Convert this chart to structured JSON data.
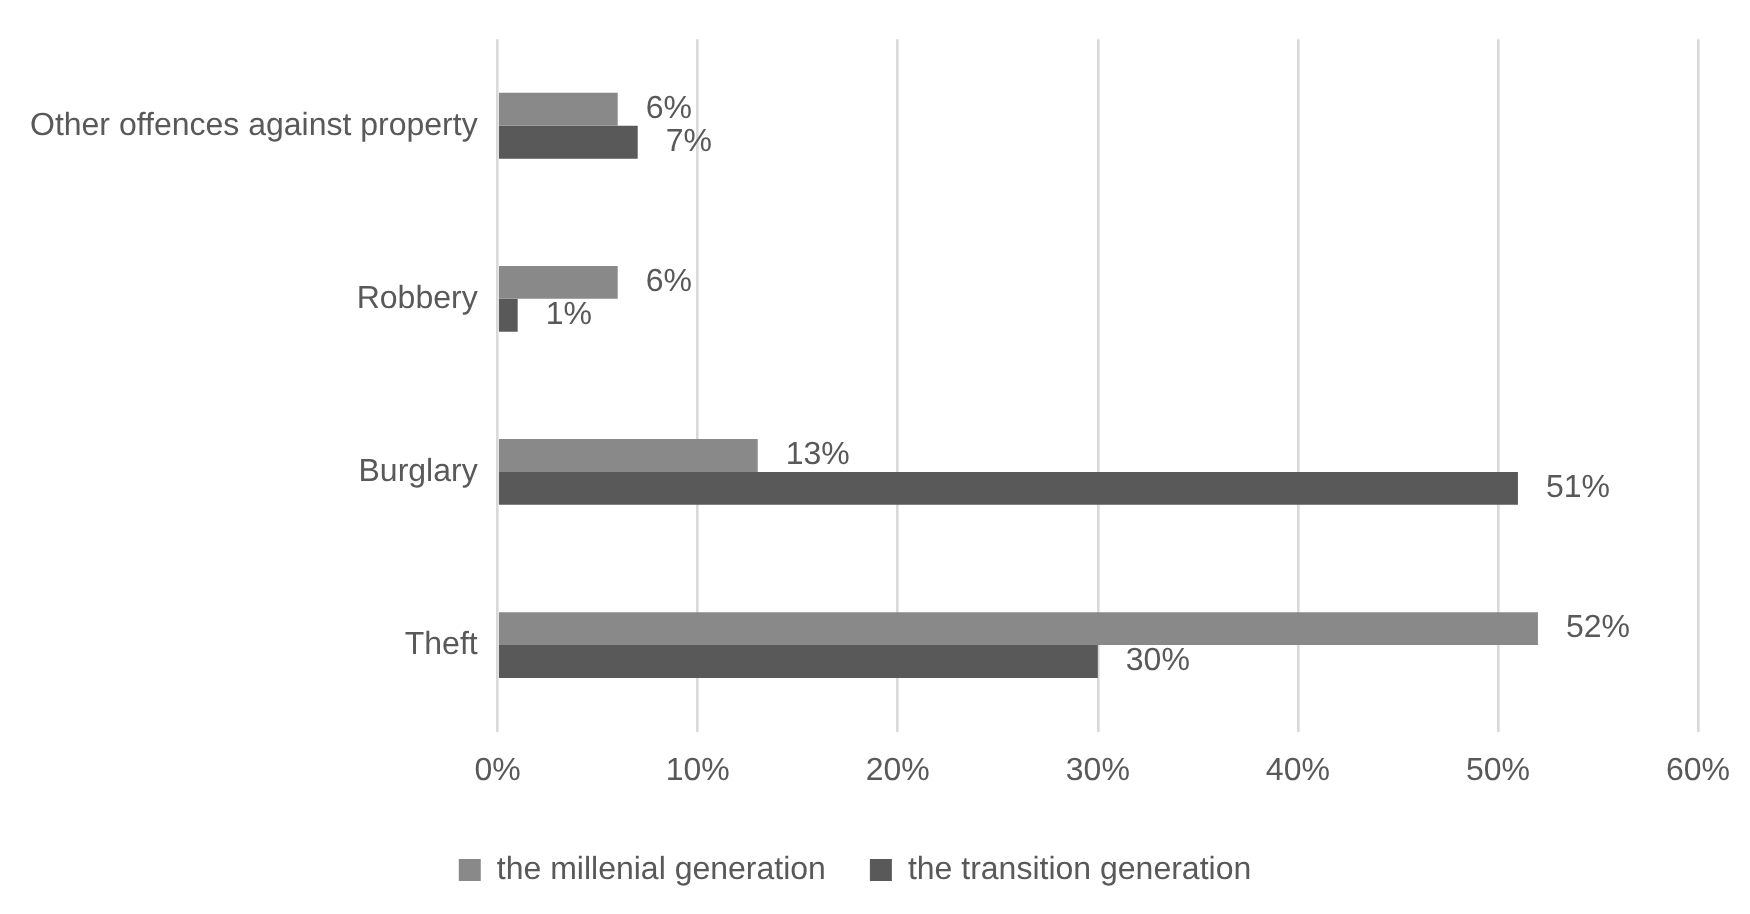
{
  "chart_data": {
    "type": "bar",
    "orientation": "horizontal",
    "categories": [
      "Other offences against property",
      "Robbery",
      "Burglary",
      "Theft"
    ],
    "series": [
      {
        "name": "the millenial generation",
        "color": "#898989",
        "values": [
          6,
          6,
          13,
          52
        ],
        "value_labels": [
          "6%",
          "6%",
          "13%",
          "52%"
        ]
      },
      {
        "name": "the transition generation",
        "color": "#595959",
        "values": [
          7,
          1,
          51,
          30
        ],
        "value_labels": [
          "7%",
          "1%",
          "51%",
          "30%"
        ]
      }
    ],
    "xlim": [
      0,
      60
    ],
    "xticks": [
      {
        "value": 0,
        "label": "0%"
      },
      {
        "value": 10,
        "label": "10%"
      },
      {
        "value": 20,
        "label": "20%"
      },
      {
        "value": 30,
        "label": "30%"
      },
      {
        "value": 40,
        "label": "40%"
      },
      {
        "value": 50,
        "label": "50%"
      },
      {
        "value": 60,
        "label": "60%"
      }
    ],
    "grid": "x",
    "legend": "bottom"
  }
}
